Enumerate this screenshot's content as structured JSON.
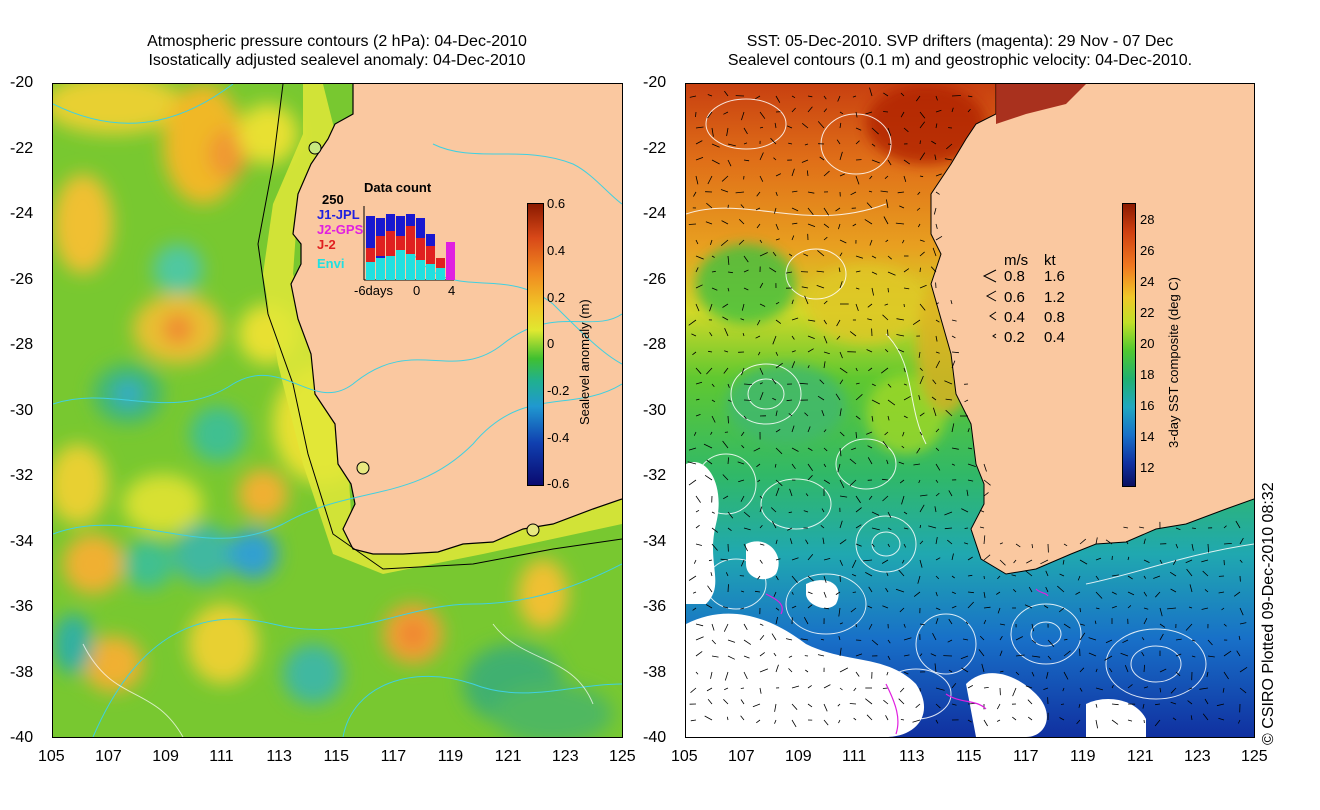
{
  "left_panel": {
    "title_line1": "Atmospheric pressure contours (2 hPa): 04-Dec-2010",
    "title_line2": "Isostatically adjusted sealevel anomaly: 04-Dec-2010",
    "colorbar": {
      "label": "Sealevel anomaly (m)",
      "ticks": [
        "0.6",
        "0.4",
        "0.2",
        "0",
        "-0.2",
        "-0.4",
        "-0.6"
      ],
      "colors": [
        "#8b1a00",
        "#e0501a",
        "#f0a020",
        "#e8e820",
        "#20c030",
        "#20a0c8",
        "#1030a0",
        "#0a0a60"
      ]
    },
    "inset": {
      "title": "Data count",
      "ymax_label": "250",
      "x_labels": [
        "-6days",
        "0",
        "4"
      ],
      "legend": [
        {
          "label": "J1-JPL",
          "color": "#2020e0"
        },
        {
          "label": "J2-GPS",
          "color": "#e020e0"
        },
        {
          "label": "J-2",
          "color": "#e02020"
        },
        {
          "label": "Envi",
          "color": "#20e0e0"
        }
      ]
    }
  },
  "right_panel": {
    "title_line1": "SST: 05-Dec-2010. SVP drifters (magenta): 29 Nov - 07 Dec",
    "title_line2": "Sealevel contours (0.1 m) and geostrophic velocity: 04-Dec-2010.",
    "colorbar": {
      "label": "3-day SST composite (deg C)",
      "ticks": [
        "28",
        "26",
        "24",
        "22",
        "20",
        "18",
        "16",
        "14",
        "12"
      ],
      "colors": [
        "#8b1a00",
        "#d04010",
        "#f08020",
        "#f0d020",
        "#a0e020",
        "#20c040",
        "#20c0a0",
        "#2090d0",
        "#1050b0",
        "#101870"
      ]
    },
    "velocity_key": {
      "header_ms": "m/s",
      "header_kt": "kt",
      "rows": [
        {
          "ms": "0.8",
          "kt": "1.6"
        },
        {
          "ms": "0.6",
          "kt": "1.2"
        },
        {
          "ms": "0.4",
          "kt": "0.8"
        },
        {
          "ms": "0.2",
          "kt": "0.4"
        }
      ]
    }
  },
  "axes": {
    "y_labels": [
      "-20",
      "-22",
      "-24",
      "-26",
      "-28",
      "-30",
      "-32",
      "-34",
      "-36",
      "-38",
      "-40"
    ],
    "x_labels": [
      "105",
      "107",
      "109",
      "111",
      "113",
      "115",
      "117",
      "119",
      "121",
      "123",
      "125"
    ]
  },
  "colors": {
    "land": "#fac8a0",
    "cloud": "#ffffff",
    "coastline": "#000000"
  },
  "copyright": "© CSIRO Plotted 09-Dec-2010 08:32"
}
